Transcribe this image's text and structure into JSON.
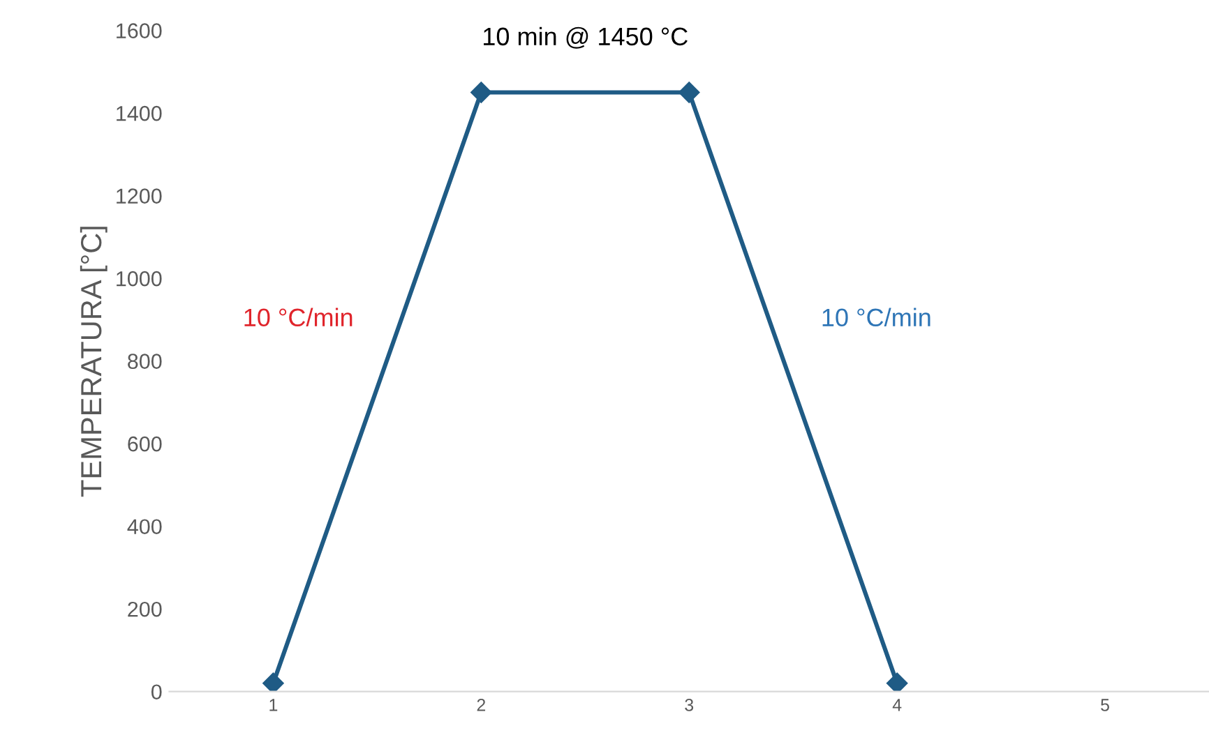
{
  "chart_data": {
    "type": "line",
    "categories": [
      "1",
      "2",
      "3",
      "4",
      "5"
    ],
    "series": [
      {
        "color": "#1f5b85",
        "values": [
          20,
          1450,
          1450,
          20,
          null
        ]
      }
    ],
    "ylabel": "TEMPERATURA [°C]",
    "ylim": [
      0,
      1600
    ],
    "yticks": [
      0,
      200,
      400,
      600,
      800,
      1000,
      1200,
      1400,
      1600
    ],
    "marker": "diamond",
    "line_style": "solid",
    "grid": false,
    "legend": false,
    "annotations": [
      "10 min @ 1450 °C",
      "10 °C/min",
      "10 °C/min"
    ]
  }
}
